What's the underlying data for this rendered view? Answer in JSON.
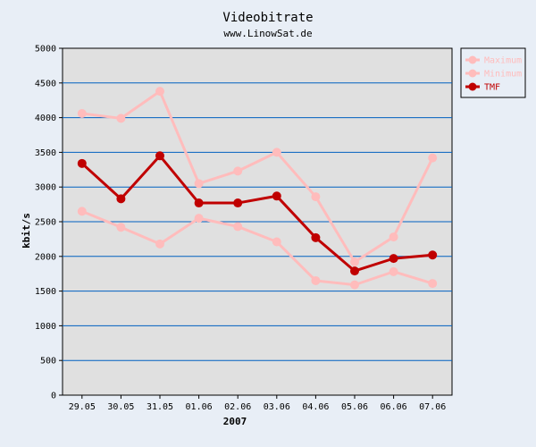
{
  "chart_data": {
    "type": "line",
    "title": "Videobitrate",
    "subtitle": "www.LinowSat.de",
    "xlabel": "2007",
    "ylabel": "kbit/s",
    "categories": [
      "29.05",
      "30.05",
      "31.05",
      "01.06",
      "02.06",
      "03.06",
      "04.06",
      "05.06",
      "06.06",
      "07.06"
    ],
    "ylim": [
      0,
      5000
    ],
    "yticks": [
      0,
      500,
      1000,
      1500,
      2000,
      2500,
      3000,
      3500,
      4000,
      4500,
      5000
    ],
    "grid": true,
    "legend_position": "top-right",
    "series": [
      {
        "name": "Maximum",
        "color": "#ffbcbc",
        "values": [
          4060,
          3990,
          4380,
          3050,
          3230,
          3500,
          2860,
          1920,
          2280,
          3420
        ]
      },
      {
        "name": "Minimum",
        "color": "#ffbcbc",
        "values": [
          2650,
          2420,
          2180,
          2550,
          2430,
          2210,
          1650,
          1590,
          1780,
          1610
        ]
      },
      {
        "name": "TMF",
        "color": "#c00000",
        "values": [
          3340,
          2830,
          3450,
          2770,
          2770,
          2870,
          2270,
          1790,
          1970,
          2020
        ]
      }
    ]
  }
}
